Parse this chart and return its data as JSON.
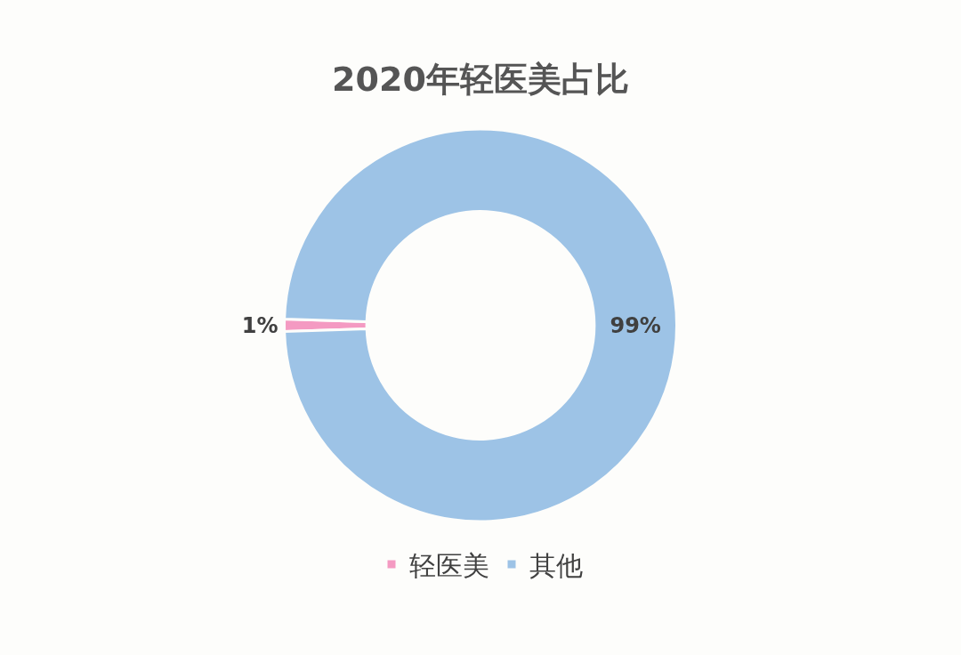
{
  "chart_data": {
    "type": "donut",
    "title": "2020年轻医美占比",
    "categories": [
      "轻医美",
      "其他"
    ],
    "values": [
      1,
      99
    ],
    "colors": [
      "#f49ac2",
      "#9dc3e6"
    ],
    "value_labels": [
      "1%",
      "99%"
    ],
    "legend": "bottom"
  }
}
